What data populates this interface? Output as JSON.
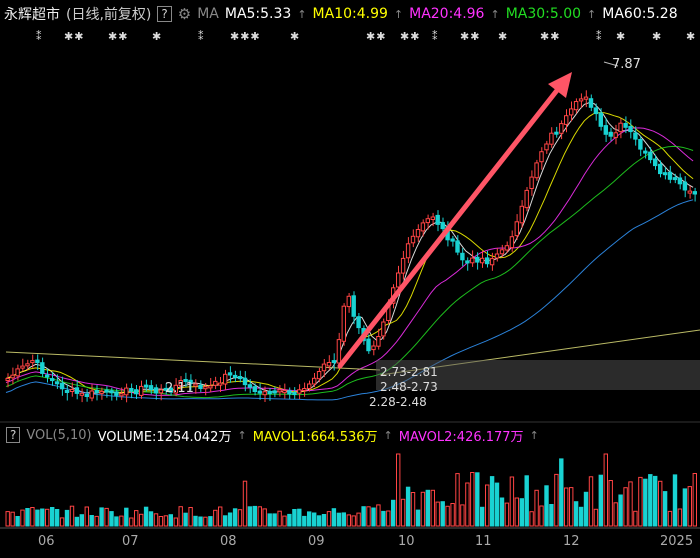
{
  "header": {
    "stock_name": "永辉超市",
    "period_label": "(日线,前复权)",
    "help_label": "?",
    "settings_icon": "gear-icon",
    "ma_label": "MA",
    "ma5": "MA5:5.33",
    "ma10": "MA10:4.99",
    "ma20": "MA20:4.96",
    "ma30": "MA30:5.00",
    "ma60": "MA60:5.28",
    "colors": {
      "ma5": "#ffffff",
      "ma10": "#ffff00",
      "ma20": "#ff00ff",
      "ma30": "#00ff00",
      "ma60": "#ffffff"
    }
  },
  "chart": {
    "high_label": "7.87",
    "low_label": "2.11",
    "range_labels": [
      "2.73-2.81",
      "2.48-2.73",
      "2.28-2.48"
    ]
  },
  "volume_header": {
    "help_label": "?",
    "vol_label": "VOL(5,10)",
    "volume": "VOLUME:1254.042万",
    "mavol1": "MAVOL1:664.536万",
    "mavol2": "MAVOL2:426.177万"
  },
  "x_axis": {
    "labels": [
      "06",
      "07",
      "08",
      "09",
      "10",
      "11",
      "12",
      "2025"
    ]
  },
  "chart_data": {
    "type": "candlestick",
    "high": 7.87,
    "low": 2.11,
    "price_ranges": [
      "2.73-2.81",
      "2.48-2.73",
      "2.28-2.48"
    ],
    "months": [
      "06",
      "07",
      "08",
      "09",
      "10",
      "11",
      "12",
      "2025"
    ],
    "moving_averages": {
      "MA5": 5.33,
      "MA10": 4.99,
      "MA20": 4.96,
      "MA30": 5.0,
      "MA60": 5.28
    },
    "volume": {
      "VOLUME": "1254.042万",
      "MAVOL1": "664.536万",
      "MAVOL2": "426.177万"
    }
  }
}
